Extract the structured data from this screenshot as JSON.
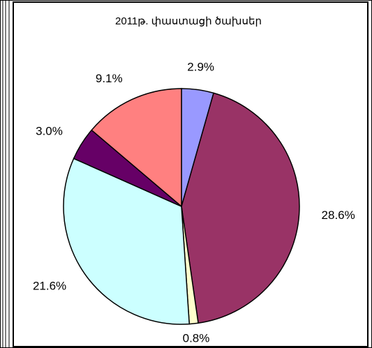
{
  "chart_data": {
    "type": "pie",
    "title": "2011թ. փաստացի ծախսեր",
    "categories": [
      null,
      null,
      null,
      null,
      null,
      null
    ],
    "values": [
      2.9,
      28.6,
      0.8,
      21.6,
      3.0,
      9.1
    ],
    "value_labels": [
      "2.9%",
      "28.6%",
      "0.8%",
      "21.6%",
      "3.0%",
      "9.1%"
    ],
    "colors": [
      "#9999ff",
      "#993366",
      "#ffffcc",
      "#ccffff",
      "#660066",
      "#ff8080"
    ]
  }
}
